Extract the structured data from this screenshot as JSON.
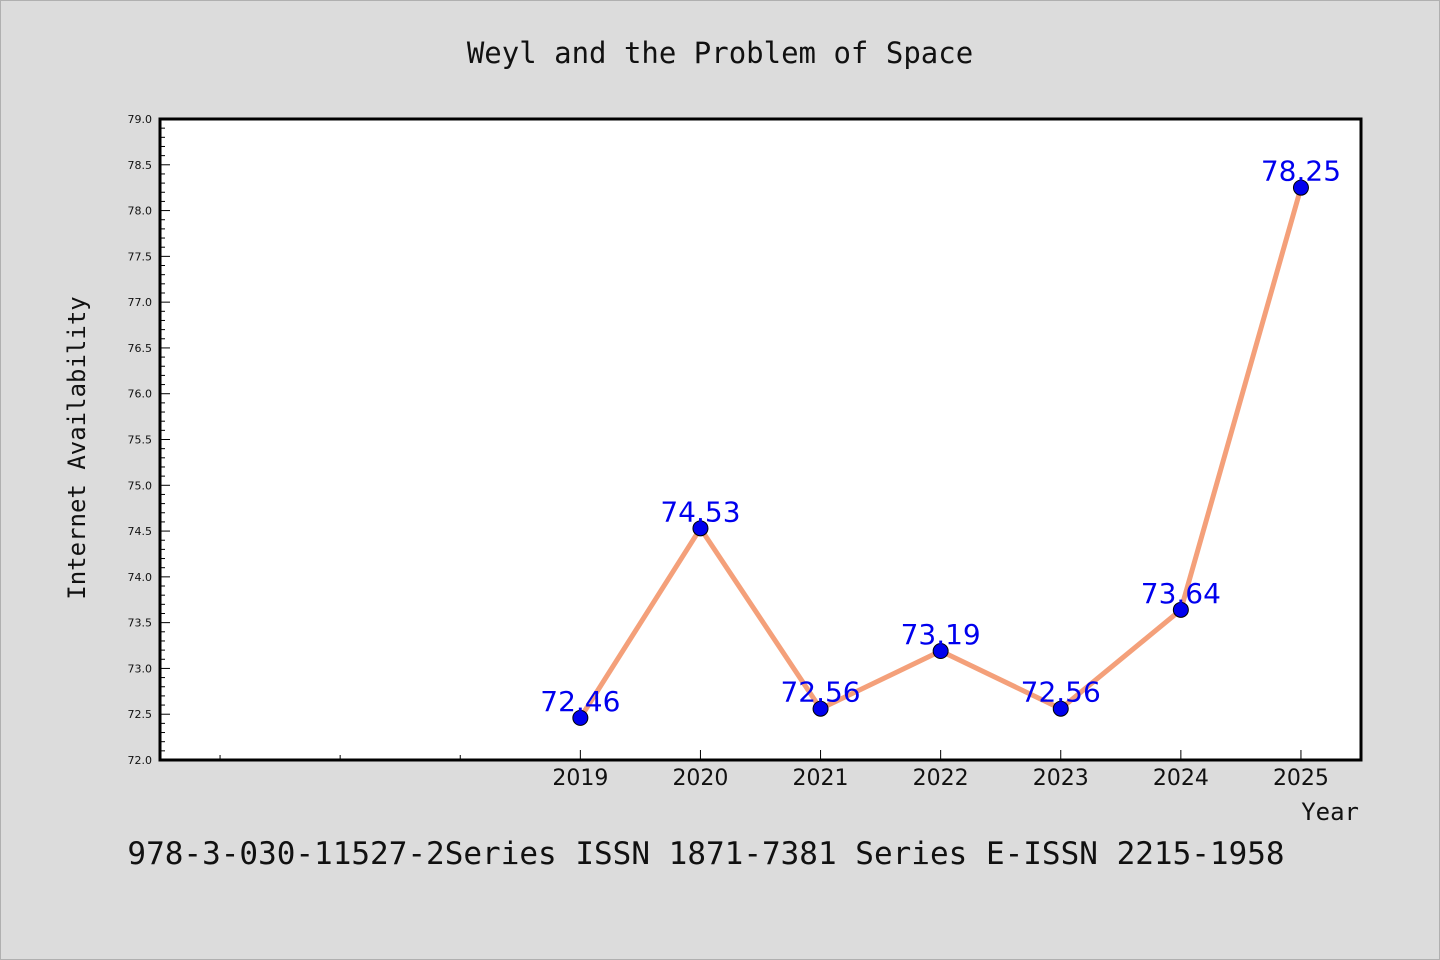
{
  "chart_data": {
    "type": "line",
    "title": "Weyl and the Problem of Space",
    "xlabel": "Year",
    "ylabel": "Internet Availability",
    "footer": "978-3-030-11527-2Series ISSN 1871-7381 Series E-ISSN 2215-1958",
    "ylim": [
      72.0,
      79.0
    ],
    "ytick_step": 0.5,
    "yticks": [
      "72.0",
      "72.5",
      "73.0",
      "73.5",
      "74.0",
      "74.5",
      "75.0",
      "75.5",
      "76.0",
      "76.5",
      "77.0",
      "77.5",
      "78.0",
      "78.5",
      "79.0"
    ],
    "x": [
      2019,
      2020,
      2021,
      2022,
      2023,
      2024,
      2025
    ],
    "xlim": [
      2015.5,
      2025.5
    ],
    "values": [
      72.46,
      74.53,
      72.56,
      73.19,
      72.56,
      73.64,
      78.25
    ],
    "data_labels": [
      "72.46",
      "74.53",
      "72.56",
      "73.19",
      "72.56",
      "73.64",
      "78.25"
    ],
    "line_color": "#f4a07a",
    "marker_color": "#0000ee",
    "label_color": "#0000ee",
    "plot_background": "#ffffff",
    "figure_background": "#dcdcdc",
    "grid": false,
    "legend": "none"
  }
}
